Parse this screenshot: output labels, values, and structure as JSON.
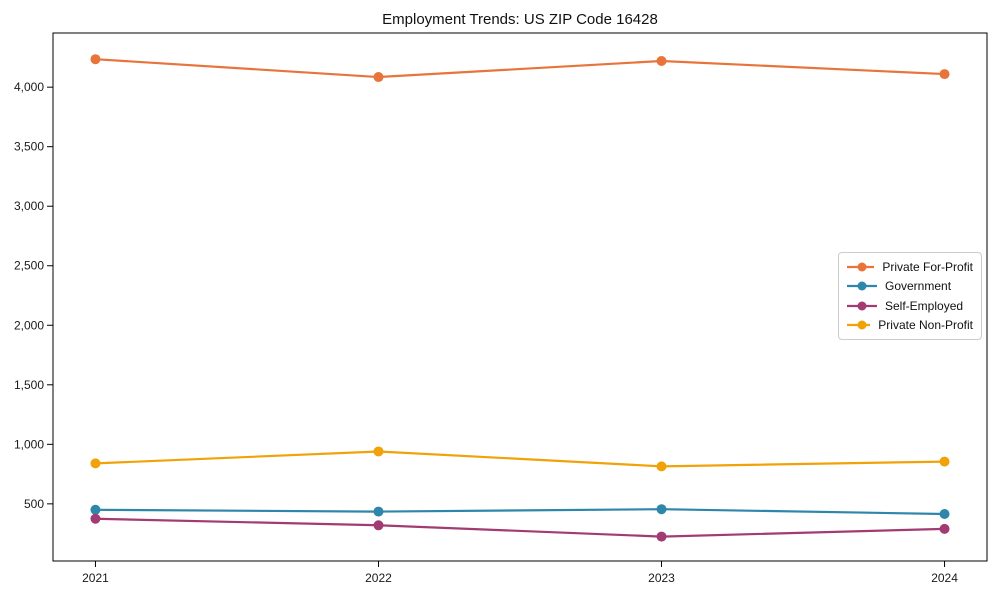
{
  "chart_data": {
    "type": "line",
    "title": "Employment Trends: US ZIP Code 16428",
    "x": [
      2021,
      2022,
      2023,
      2024
    ],
    "x_tick_labels": [
      "2021",
      "2022",
      "2023",
      "2024"
    ],
    "series": [
      {
        "name": "Private For-Profit",
        "color": "#E8743B",
        "values": [
          4235,
          4085,
          4220,
          4110
        ]
      },
      {
        "name": "Government",
        "color": "#2E86AB",
        "values": [
          450,
          435,
          455,
          415
        ]
      },
      {
        "name": "Self-Employed",
        "color": "#A23B72",
        "values": [
          375,
          320,
          225,
          290
        ]
      },
      {
        "name": "Private Non-Profit",
        "color": "#F1A208",
        "values": [
          840,
          940,
          815,
          855
        ]
      }
    ],
    "xlabel": "",
    "ylabel": "",
    "xlim": [
      2020.85,
      2024.15
    ],
    "ylim": [
      20,
      4455
    ],
    "yticks": [
      500,
      1000,
      1500,
      2000,
      2500,
      3000,
      3500,
      4000
    ],
    "ytick_format": "comma",
    "grid": false,
    "legend": {
      "position": "right-middle",
      "border_color": "#cccccc"
    },
    "marker": "circle",
    "axis_color": "#000000",
    "tick_label_color": "#1a1a1a"
  }
}
